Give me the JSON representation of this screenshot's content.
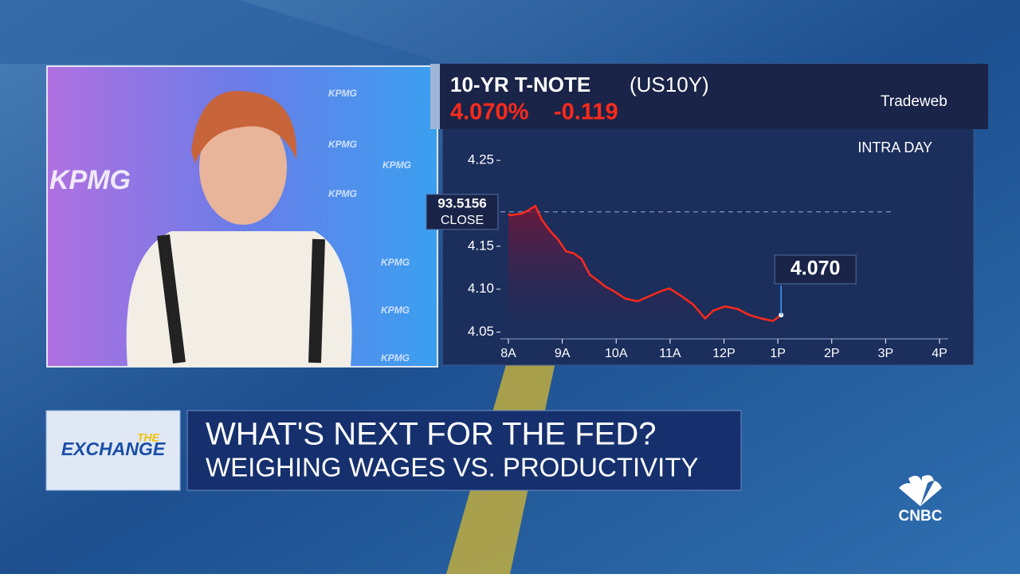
{
  "chart_data": {
    "type": "line",
    "title": "10-YR T-NOTE",
    "subtitle": "(US10Y)",
    "price_label": "4.070%",
    "change_label": "-0.119",
    "source": "Tradeweb",
    "annotation": "INTRA DAY",
    "close_text": "93.5156",
    "close_label": "CLOSE",
    "close_value": 4.19,
    "last_label": "4.070",
    "xlim": [
      8,
      16
    ],
    "xticks": [
      {
        "value": 8,
        "label": "8A"
      },
      {
        "value": 9,
        "label": "9A"
      },
      {
        "value": 10,
        "label": "10A"
      },
      {
        "value": 11,
        "label": "11A"
      },
      {
        "value": 12,
        "label": "12P"
      },
      {
        "value": 13,
        "label": "1P"
      },
      {
        "value": 14,
        "label": "2P"
      },
      {
        "value": 15,
        "label": "3P"
      },
      {
        "value": 16,
        "label": "4P"
      }
    ],
    "ylim": [
      4.045,
      4.27
    ],
    "yticks": [
      4.05,
      {
        "value": 4.1,
        "label": "4.10"
      },
      4.15,
      4.25
    ],
    "x": [
      8.0,
      8.03,
      8.25,
      8.4,
      8.5,
      8.62,
      8.77,
      8.92,
      9.07,
      9.21,
      9.36,
      9.51,
      9.66,
      9.8,
      9.95,
      10.17,
      10.4,
      10.62,
      10.84,
      10.99,
      11.21,
      11.43,
      11.65,
      11.8,
      12.02,
      12.25,
      12.47,
      12.69,
      12.91,
      13.06
    ],
    "series": [
      {
        "color": "#ff2a1a",
        "values": [
          4.188,
          4.186,
          4.188,
          4.193,
          4.197,
          4.181,
          4.168,
          4.158,
          4.144,
          4.142,
          4.135,
          4.117,
          4.11,
          4.103,
          4.098,
          4.089,
          4.086,
          4.092,
          4.098,
          4.101,
          4.092,
          4.082,
          4.066,
          4.075,
          4.08,
          4.077,
          4.07,
          4.066,
          4.063,
          4.07
        ]
      }
    ]
  },
  "broadcast": {
    "sponsor": "KPMG",
    "show_top": "THE",
    "show_name": "EXCHANGE",
    "headline": "WHAT'S NEXT FOR THE FED?",
    "subheadline": "WEIGHING WAGES VS. PRODUCTIVITY",
    "network": "CNBC"
  }
}
